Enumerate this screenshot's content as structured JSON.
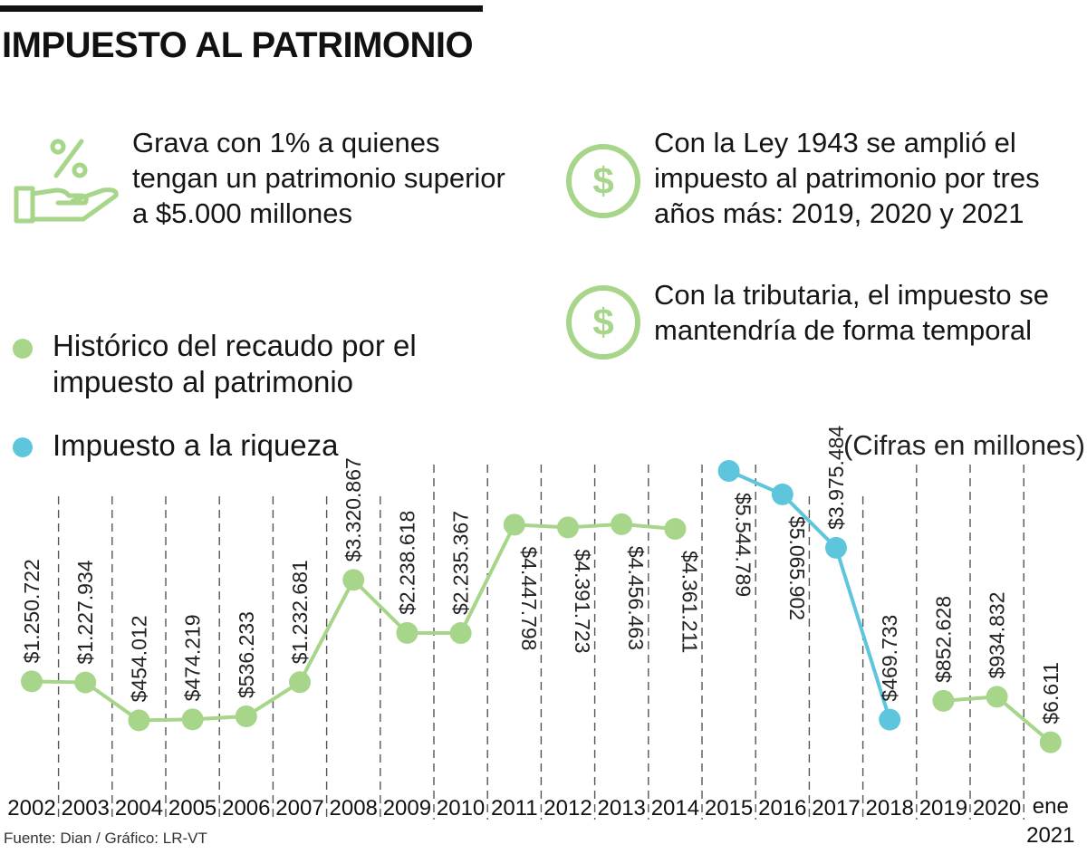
{
  "title": "IMPUESTO AL PATRIMONIO",
  "notes": {
    "note1": "Grava con 1% a quienes tengan un patrimonio superior a $5.000 millones",
    "note2": "Con la Ley 1943 se amplió el impuesto al patrimonio por tres años más: 2019, 2020 y 2021",
    "note3": "Con la tributaria, el impuesto se mantendría de forma temporal"
  },
  "icons": [
    "percent-hand-icon",
    "dollar-circle-icon",
    "dollar-circle-icon"
  ],
  "legend": {
    "item1": "Histórico del recaudo por el impuesto al patrimonio",
    "item2": "Impuesto a la riqueza"
  },
  "units": "(Cifras en millones)",
  "source": "Fuente: Dian / Gráfico: LR-VT",
  "colors": {
    "green": "#a7d58a",
    "blue": "#5ec6dc"
  },
  "chart_data": {
    "type": "line",
    "categories": [
      "2002",
      "2003",
      "2004",
      "2005",
      "2006",
      "2007",
      "2008",
      "2009",
      "2010",
      "2011",
      "2012",
      "2013",
      "2014",
      "2015",
      "2016",
      "2017",
      "2018",
      "2019",
      "2020",
      "ene 2021"
    ],
    "series": [
      {
        "name": "Histórico del recaudo por el impuesto al patrimonio",
        "color": "#a7d58a",
        "segments": [
          {
            "x": [
              "2002",
              "2003",
              "2004",
              "2005",
              "2006",
              "2007",
              "2008",
              "2009",
              "2010",
              "2011",
              "2012",
              "2013",
              "2014"
            ],
            "values": [
              1250722,
              1227934,
              454012,
              474219,
              536233,
              1232681,
              3320867,
              2238618,
              2235367,
              4447798,
              4391723,
              4456463,
              4361211
            ],
            "labels": [
              "$1.250.722",
              "$1.227.934",
              "$454.012",
              "$474.219",
              "$536.233",
              "$1.232.681",
              "$3.320.867",
              "$2.238.618",
              "$2.235.367",
              "$4.447.798",
              "$4.391.723",
              "$4.456.463",
              "$4.361.211"
            ]
          },
          {
            "x": [
              "2019",
              "2020",
              "ene 2021"
            ],
            "values": [
              852628,
              934832,
              6611
            ],
            "labels": [
              "$852.628",
              "$934.832",
              "$6.611"
            ]
          }
        ]
      },
      {
        "name": "Impuesto a la riqueza",
        "color": "#5ec6dc",
        "segments": [
          {
            "x": [
              "2015",
              "2016",
              "2017",
              "2018"
            ],
            "values": [
              5544789,
              5065902,
              3975484,
              469733
            ],
            "labels": [
              "$5.544.789",
              "$5.065.902",
              "$3.975.484",
              "$469.733"
            ]
          }
        ]
      }
    ],
    "grid": "vertical dashed lines between years"
  }
}
